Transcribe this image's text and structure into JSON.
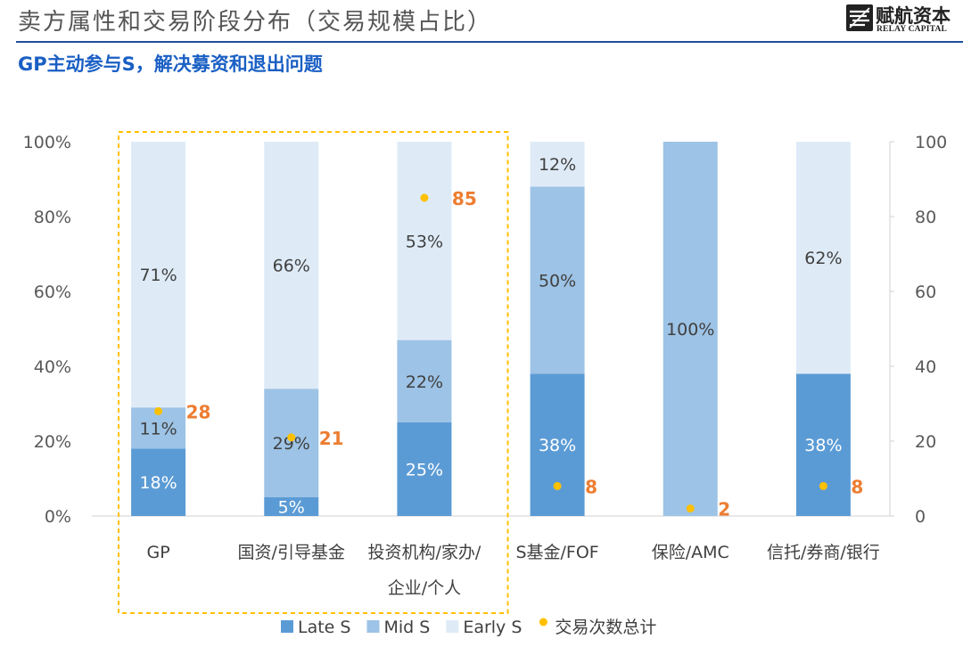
{
  "header": {
    "title": "卖方属性和交易阶段分布（交易规模占比）",
    "subtitle": "GP主动参与S，解决募资和退出问题",
    "logo_cn": "赋航资本",
    "logo_en": "RELAY CAPITAL"
  },
  "colors": {
    "late": "#5b9bd5",
    "mid": "#9dc3e6",
    "early": "#deebf7",
    "dot": "#ffc000",
    "count_label": "#ed7d31",
    "highlight": "#ffc000"
  },
  "chart_data": {
    "type": "bar",
    "stacked": true,
    "categories": [
      "GP",
      "国资/引导基金",
      "投资机构/家办/企业/个人",
      "S基金/FOF",
      "保险/AMC",
      "信托/券商/银行"
    ],
    "category_label_lines": [
      [
        "GP"
      ],
      [
        "国资/引导基金"
      ],
      [
        "投资机构/家办/",
        "企业/个人"
      ],
      [
        "S基金/FOF"
      ],
      [
        "保险/AMC"
      ],
      [
        "信托/券商/银行"
      ]
    ],
    "series": [
      {
        "name": "Late S",
        "values": [
          18,
          5,
          25,
          38,
          0,
          38
        ],
        "labels": [
          "18%",
          "5%",
          "25%",
          "38%",
          "",
          "38%"
        ]
      },
      {
        "name": "Mid S",
        "values": [
          11,
          29,
          22,
          50,
          100,
          0
        ],
        "labels": [
          "11%",
          "29%",
          "22%",
          "50%",
          "100%",
          ""
        ]
      },
      {
        "name": "Early S",
        "values": [
          71,
          66,
          53,
          12,
          0,
          62
        ],
        "labels": [
          "71%",
          "66%",
          "53%",
          "12%",
          "",
          "62%"
        ]
      }
    ],
    "secondary_series": {
      "name": "交易次数总计",
      "type": "scatter",
      "values": [
        28,
        21,
        85,
        8,
        2,
        8
      ],
      "labels": [
        "28",
        "21",
        "85",
        "8",
        "2",
        "8"
      ]
    },
    "y_ticks": [
      "0%",
      "20%",
      "40%",
      "60%",
      "80%",
      "100%"
    ],
    "y2_ticks": [
      "0",
      "20",
      "40",
      "60",
      "80",
      "100"
    ],
    "ylim": [
      0,
      100
    ],
    "y2lim": [
      0,
      100
    ],
    "highlight_categories": [
      0,
      1,
      2
    ],
    "legend": [
      "Late S",
      "Mid S",
      "Early S",
      "交易次数总计"
    ],
    "legend_position": "bottom"
  }
}
